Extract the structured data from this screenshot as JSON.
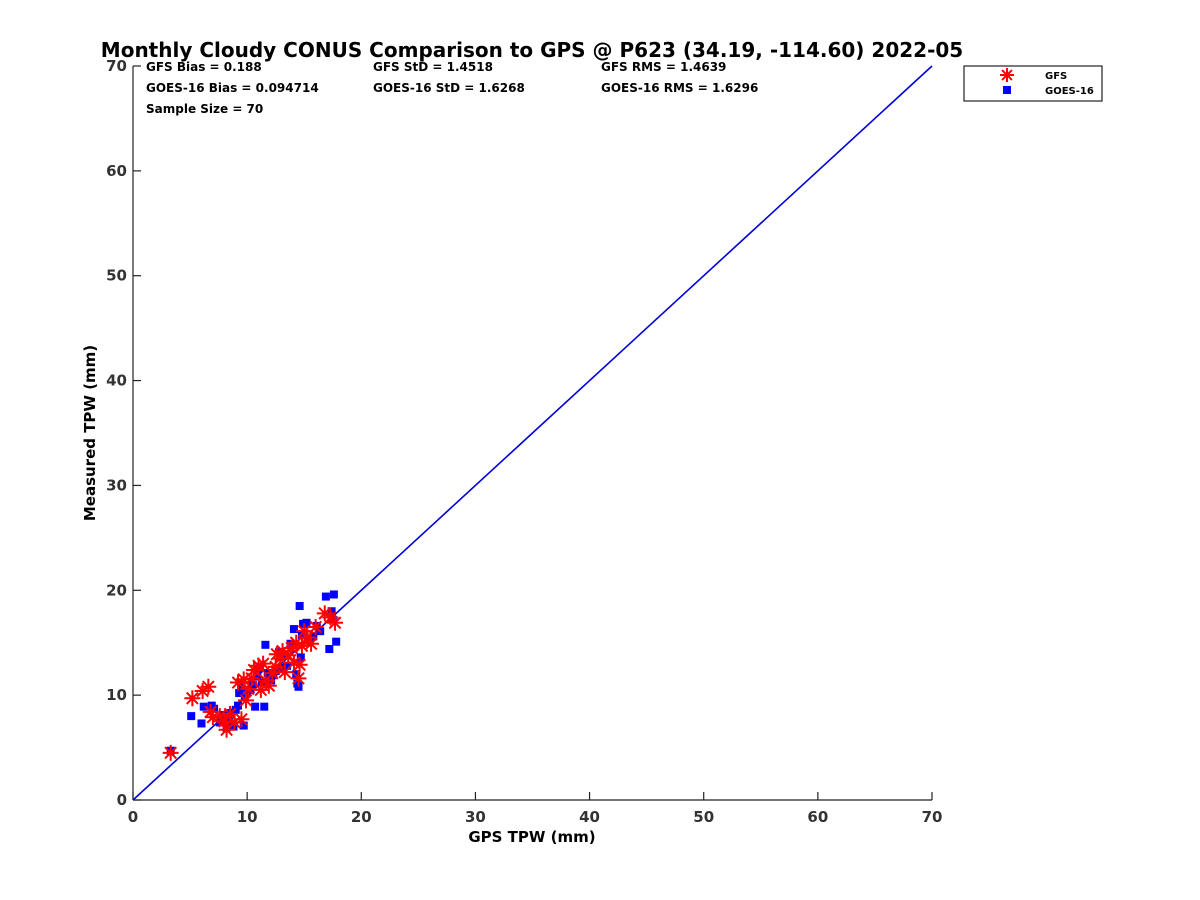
{
  "chart_data": {
    "type": "scatter",
    "title": "Monthly Cloudy CONUS Comparison to GPS @ P623 (34.19, -114.60) 2022-05",
    "xlabel": "GPS TPW (mm)",
    "ylabel": "Measured TPW (mm)",
    "xlim": [
      0,
      70
    ],
    "ylim": [
      0,
      70
    ],
    "xticks": [
      "0",
      "10",
      "20",
      "30",
      "40",
      "50",
      "60",
      "70"
    ],
    "yticks": [
      "0",
      "10",
      "20",
      "30",
      "40",
      "50",
      "60",
      "70"
    ],
    "grid": false,
    "legend_placement": "top-right (outside axes)",
    "stats": {
      "gfs_bias": "GFS Bias = 0.188",
      "gfs_std": "GFS StD = 1.4518",
      "gfs_rms": "GFS RMS = 1.4639",
      "goes_bias": "GOES-16 Bias = 0.094714",
      "goes_std": "GOES-16 StD = 1.6268",
      "goes_rms": "GOES-16 RMS = 1.6296",
      "sample_size": "Sample Size = 70"
    },
    "one_to_one_line": {
      "x": [
        0,
        70
      ],
      "y": [
        0,
        70
      ],
      "color": "#0000dd"
    },
    "series": [
      {
        "name": "GFS",
        "marker": "asterisk",
        "color": "#ff0000",
        "points": [
          [
            3.3,
            4.5
          ],
          [
            5.2,
            9.7
          ],
          [
            6.1,
            10.4
          ],
          [
            6.6,
            10.8
          ],
          [
            6.8,
            8.4
          ],
          [
            7.0,
            7.9
          ],
          [
            7.6,
            8.0
          ],
          [
            8.0,
            7.5
          ],
          [
            8.2,
            6.7
          ],
          [
            8.5,
            8.2
          ],
          [
            8.9,
            7.4
          ],
          [
            9.2,
            11.2
          ],
          [
            9.5,
            7.7
          ],
          [
            9.7,
            11.5
          ],
          [
            9.9,
            9.5
          ],
          [
            10.1,
            10.6
          ],
          [
            10.4,
            11.6
          ],
          [
            10.6,
            12.4
          ],
          [
            11.0,
            12.8
          ],
          [
            11.2,
            10.5
          ],
          [
            11.4,
            13.0
          ],
          [
            11.6,
            11.4
          ],
          [
            11.9,
            10.9
          ],
          [
            12.2,
            12.1
          ],
          [
            12.5,
            12.7
          ],
          [
            12.6,
            13.9
          ],
          [
            12.9,
            13.5
          ],
          [
            13.1,
            14.2
          ],
          [
            13.3,
            12.2
          ],
          [
            13.6,
            13.8
          ],
          [
            13.9,
            14.5
          ],
          [
            14.1,
            13.1
          ],
          [
            14.3,
            15.0
          ],
          [
            14.5,
            11.6
          ],
          [
            14.6,
            12.9
          ],
          [
            14.8,
            14.7
          ],
          [
            15.0,
            16.1
          ],
          [
            15.3,
            15.5
          ],
          [
            15.6,
            14.9
          ],
          [
            16.0,
            16.5
          ],
          [
            16.8,
            17.8
          ],
          [
            17.3,
            17.4
          ],
          [
            17.7,
            16.9
          ]
        ]
      },
      {
        "name": "GOES-16",
        "marker": "square",
        "color": "#0000ff",
        "points": [
          [
            3.3,
            4.7
          ],
          [
            5.1,
            8.0
          ],
          [
            6.0,
            7.3
          ],
          [
            6.2,
            8.9
          ],
          [
            6.9,
            9.0
          ],
          [
            7.1,
            8.7
          ],
          [
            7.6,
            7.4
          ],
          [
            7.9,
            8.1
          ],
          [
            8.2,
            6.9
          ],
          [
            8.4,
            7.7
          ],
          [
            8.6,
            8.3
          ],
          [
            8.8,
            7.0
          ],
          [
            9.0,
            8.6
          ],
          [
            9.2,
            9.0
          ],
          [
            9.3,
            10.2
          ],
          [
            9.5,
            10.8
          ],
          [
            9.7,
            7.1
          ],
          [
            9.8,
            9.8
          ],
          [
            10.0,
            10.3
          ],
          [
            10.3,
            10.5
          ],
          [
            10.5,
            11.0
          ],
          [
            10.7,
            8.9
          ],
          [
            10.9,
            11.8
          ],
          [
            11.0,
            12.5
          ],
          [
            11.3,
            11.2
          ],
          [
            11.5,
            8.9
          ],
          [
            11.6,
            14.8
          ],
          [
            11.8,
            12.1
          ],
          [
            12.1,
            11.4
          ],
          [
            12.3,
            11.9
          ],
          [
            12.5,
            12.3
          ],
          [
            12.8,
            14.1
          ],
          [
            13.0,
            12.6
          ],
          [
            13.2,
            13.8
          ],
          [
            13.5,
            12.8
          ],
          [
            13.8,
            14.9
          ],
          [
            14.1,
            16.3
          ],
          [
            14.3,
            12.0
          ],
          [
            14.4,
            11.1
          ],
          [
            14.5,
            10.8
          ],
          [
            14.6,
            18.5
          ],
          [
            14.7,
            13.6
          ],
          [
            14.8,
            15.7
          ],
          [
            14.9,
            16.8
          ],
          [
            15.2,
            16.9
          ],
          [
            15.5,
            15.4
          ],
          [
            15.8,
            15.6
          ],
          [
            16.1,
            16.6
          ],
          [
            16.4,
            16.1
          ],
          [
            16.9,
            19.4
          ],
          [
            17.2,
            14.4
          ],
          [
            17.4,
            18.0
          ],
          [
            17.6,
            19.6
          ],
          [
            17.8,
            15.1
          ],
          [
            17.5,
            17.2
          ]
        ]
      }
    ]
  }
}
